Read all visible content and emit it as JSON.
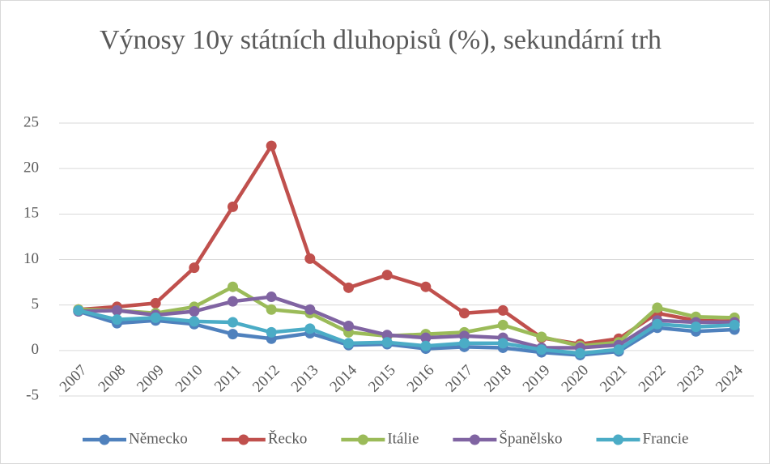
{
  "chart_data": {
    "type": "line",
    "title": "Výnosy 10y státních dluhopisů (%), sekundární trh",
    "categories": [
      "2007",
      "2008",
      "2009",
      "2010",
      "2011",
      "2012",
      "2013",
      "2014",
      "2015",
      "2016",
      "2017",
      "2018",
      "2019",
      "2020",
      "2021",
      "2022",
      "2023",
      "2024"
    ],
    "series": [
      {
        "name": "Německo",
        "color": "#4f81bd",
        "values": [
          4.3,
          3.0,
          3.3,
          2.9,
          1.8,
          1.3,
          1.9,
          0.6,
          0.7,
          0.2,
          0.4,
          0.3,
          -0.2,
          -0.5,
          -0.1,
          2.5,
          2.1,
          2.3
        ]
      },
      {
        "name": "Řecko",
        "color": "#c0504d",
        "values": [
          4.5,
          4.8,
          5.2,
          9.1,
          15.8,
          22.5,
          10.1,
          6.9,
          8.3,
          7.0,
          4.1,
          4.4,
          1.4,
          0.7,
          1.3,
          4.1,
          3.3,
          3.2
        ]
      },
      {
        "name": "Itálie",
        "color": "#9bbb59",
        "values": [
          4.5,
          4.4,
          4.1,
          4.8,
          7.0,
          4.5,
          4.1,
          2.0,
          1.6,
          1.8,
          2.0,
          2.8,
          1.5,
          0.5,
          0.9,
          4.7,
          3.7,
          3.6
        ]
      },
      {
        "name": "Španělsko",
        "color": "#8064a2",
        "values": [
          4.3,
          4.4,
          3.9,
          4.3,
          5.4,
          5.9,
          4.5,
          2.7,
          1.7,
          1.4,
          1.6,
          1.4,
          0.3,
          0.3,
          0.6,
          3.3,
          3.1,
          3.1
        ]
      },
      {
        "name": "Francie",
        "color": "#4bacc6",
        "values": [
          4.4,
          3.4,
          3.6,
          3.2,
          3.1,
          2.0,
          2.4,
          0.8,
          0.9,
          0.5,
          0.8,
          0.8,
          0.1,
          -0.3,
          0.1,
          2.9,
          2.6,
          2.8
        ]
      }
    ],
    "ylim": [
      -5,
      25
    ],
    "yticks": [
      -5,
      0,
      5,
      10,
      15,
      20,
      25
    ],
    "grid": true,
    "legend": "bottom"
  }
}
